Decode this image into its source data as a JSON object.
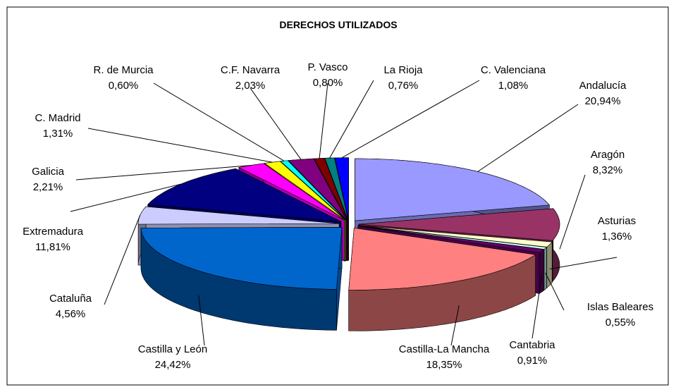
{
  "chart_data": {
    "type": "pie",
    "title": "DERECHOS UTILIZADOS",
    "categories": [
      "Andalucía",
      "Aragón",
      "Asturias",
      "Islas Baleares",
      "Cantabria",
      "Castilla-La Mancha",
      "Castilla y León",
      "Cataluña",
      "Extremadura",
      "Galicia",
      "C. Madrid",
      "R. de Murcia",
      "C.F. Navarra",
      "P. Vasco",
      "La Rioja",
      "C. Valenciana"
    ],
    "values": [
      20.94,
      8.32,
      1.36,
      0.55,
      0.91,
      18.35,
      24.42,
      4.56,
      11.81,
      2.21,
      1.31,
      0.6,
      2.03,
      0.8,
      0.76,
      1.08
    ],
    "value_labels": [
      "20,94%",
      "8,32%",
      "1,36%",
      "0,55%",
      "0,91%",
      "18,35%",
      "24,42%",
      "4,56%",
      "11,81%",
      "2,21%",
      "1,31%",
      "0,60%",
      "2,03%",
      "0,80%",
      "0,76%",
      "1,08%"
    ],
    "colors": [
      "#9999ff",
      "#993366",
      "#ffffcc",
      "#ccffff",
      "#660066",
      "#ff8080",
      "#0066cc",
      "#ccccff",
      "#000080",
      "#ff00ff",
      "#ffff00",
      "#00ffff",
      "#800080",
      "#800000",
      "#008080",
      "#0000ff"
    ]
  }
}
